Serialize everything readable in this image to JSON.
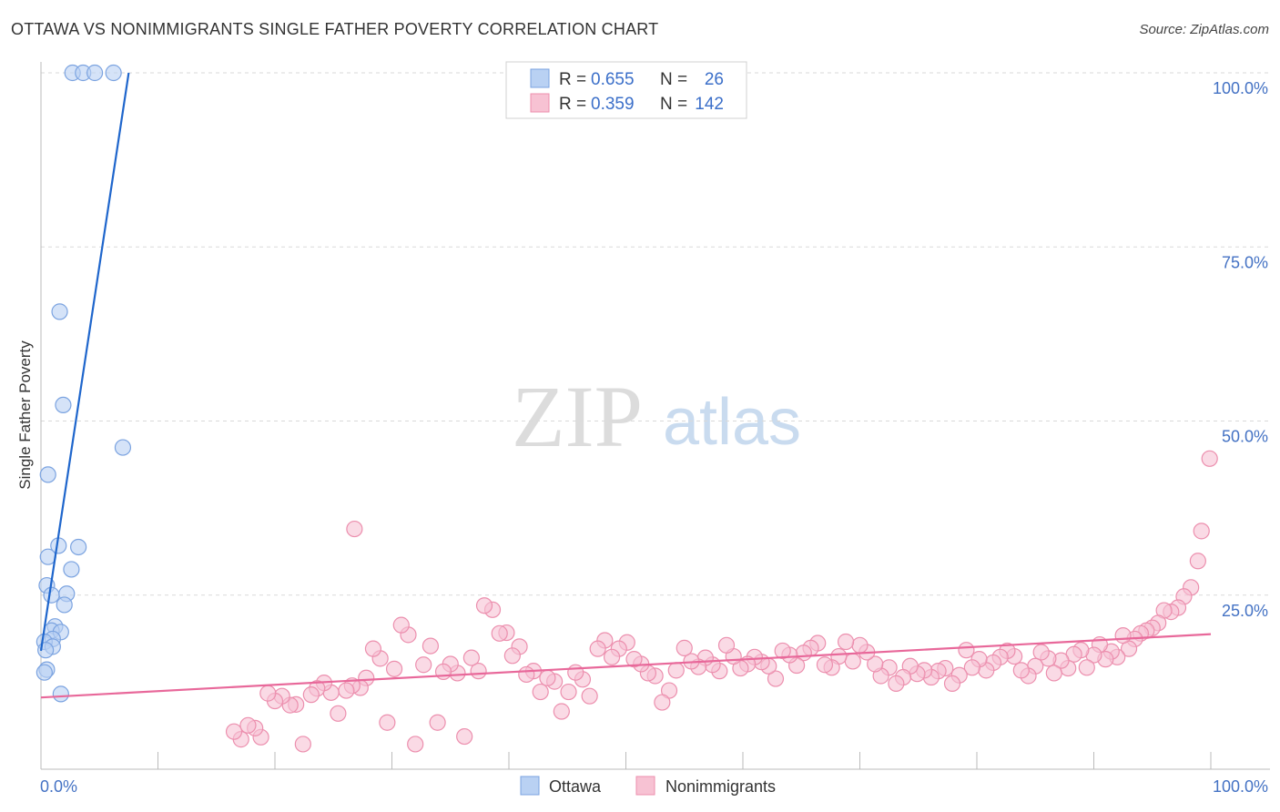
{
  "title": "OTTAWA VS NONIMMIGRANTS SINGLE FATHER POVERTY CORRELATION CHART",
  "source": "Source: ZipAtlas.com",
  "watermark": {
    "zip": "ZIP",
    "atlas": "atlas"
  },
  "colors": {
    "ottawa_fill": "#b9d1f3",
    "ottawa_stroke": "#7ba3e0",
    "ottawa_line": "#1f66cc",
    "nonimm_fill": "#f7c2d3",
    "nonimm_stroke": "#ec8fae",
    "nonimm_line": "#e8689a",
    "value_text": "#3b6fc9",
    "grid": "#d9d9d9"
  },
  "stats": [
    {
      "r_label": "R =",
      "r_value": "0.655",
      "n_label": "N =",
      "n_value": "26"
    },
    {
      "r_label": "R =",
      "r_value": "0.359",
      "n_label": "N =",
      "n_value": "142"
    }
  ],
  "chart_data": {
    "type": "scatter",
    "title": "OTTAWA VS NONIMMIGRANTS SINGLE FATHER POVERTY CORRELATION CHART",
    "xlabel": "",
    "ylabel": "Single Father Poverty",
    "xlim": [
      0,
      100
    ],
    "ylim": [
      0,
      100
    ],
    "x_tick_labels": [
      "0.0%",
      "100.0%"
    ],
    "y_ticks": [
      25,
      50,
      75,
      100
    ],
    "y_tick_labels": [
      "25.0%",
      "50.0%",
      "75.0%",
      "100.0%"
    ],
    "legend_position": "bottom-center",
    "series": [
      {
        "name": "Ottawa",
        "r": 0.655,
        "n": 26,
        "trend": {
          "x": [
            0.0,
            7.5
          ],
          "y": [
            17.0,
            100.0
          ]
        },
        "points": [
          [
            2.7,
            100.0
          ],
          [
            3.6,
            100.0
          ],
          [
            4.6,
            100.0
          ],
          [
            6.2,
            100.0
          ],
          [
            1.6,
            65.7
          ],
          [
            1.9,
            52.3
          ],
          [
            7.0,
            46.2
          ],
          [
            0.6,
            42.3
          ],
          [
            1.5,
            32.1
          ],
          [
            3.2,
            31.9
          ],
          [
            0.6,
            30.5
          ],
          [
            2.6,
            28.7
          ],
          [
            0.5,
            26.4
          ],
          [
            0.9,
            25.0
          ],
          [
            2.2,
            25.2
          ],
          [
            2.0,
            23.6
          ],
          [
            1.2,
            20.5
          ],
          [
            0.9,
            19.9
          ],
          [
            1.7,
            19.7
          ],
          [
            1.0,
            18.7
          ],
          [
            0.3,
            18.3
          ],
          [
            1.0,
            17.6
          ],
          [
            0.4,
            17.1
          ],
          [
            0.5,
            14.3
          ],
          [
            0.3,
            13.9
          ],
          [
            1.7,
            10.8
          ]
        ]
      },
      {
        "name": "Nonimmigrants",
        "r": 0.359,
        "n": 142,
        "trend": {
          "x": [
            0.0,
            100.0
          ],
          "y": [
            10.3,
            19.4
          ]
        },
        "points": [
          [
            26.8,
            34.5
          ],
          [
            99.9,
            44.6
          ],
          [
            99.2,
            34.2
          ],
          [
            98.9,
            29.9
          ],
          [
            98.3,
            26.1
          ],
          [
            97.7,
            24.8
          ],
          [
            97.2,
            23.2
          ],
          [
            96.6,
            22.6
          ],
          [
            96.0,
            22.8
          ],
          [
            95.5,
            21.0
          ],
          [
            95.0,
            20.3
          ],
          [
            94.5,
            19.9
          ],
          [
            94.0,
            19.5
          ],
          [
            93.5,
            18.7
          ],
          [
            93.0,
            17.3
          ],
          [
            92.5,
            19.2
          ],
          [
            92.0,
            16.1
          ],
          [
            91.5,
            16.9
          ],
          [
            91.0,
            15.8
          ],
          [
            90.5,
            17.9
          ],
          [
            90.0,
            16.4
          ],
          [
            89.4,
            14.6
          ],
          [
            88.9,
            17.1
          ],
          [
            88.3,
            16.5
          ],
          [
            87.8,
            14.5
          ],
          [
            87.2,
            15.6
          ],
          [
            86.6,
            13.8
          ],
          [
            86.1,
            15.9
          ],
          [
            85.5,
            16.8
          ],
          [
            85.0,
            14.8
          ],
          [
            84.4,
            13.4
          ],
          [
            83.8,
            14.2
          ],
          [
            83.2,
            16.2
          ],
          [
            82.6,
            17.0
          ],
          [
            82.0,
            16.1
          ],
          [
            81.4,
            15.3
          ],
          [
            80.8,
            14.2
          ],
          [
            80.2,
            15.8
          ],
          [
            79.6,
            14.6
          ],
          [
            79.1,
            17.1
          ],
          [
            78.5,
            13.5
          ],
          [
            77.9,
            12.3
          ],
          [
            77.3,
            14.5
          ],
          [
            76.7,
            14.1
          ],
          [
            76.1,
            13.2
          ],
          [
            75.5,
            14.2
          ],
          [
            74.9,
            13.7
          ],
          [
            74.3,
            14.8
          ],
          [
            73.7,
            13.2
          ],
          [
            73.1,
            12.3
          ],
          [
            72.5,
            14.6
          ],
          [
            71.8,
            13.4
          ],
          [
            71.3,
            15.1
          ],
          [
            70.6,
            16.8
          ],
          [
            70.0,
            17.8
          ],
          [
            69.4,
            15.5
          ],
          [
            68.8,
            18.3
          ],
          [
            68.2,
            16.2
          ],
          [
            67.6,
            14.6
          ],
          [
            67.0,
            15.0
          ],
          [
            66.4,
            18.1
          ],
          [
            65.8,
            17.4
          ],
          [
            65.2,
            16.7
          ],
          [
            64.6,
            14.9
          ],
          [
            64.0,
            16.4
          ],
          [
            63.4,
            17.0
          ],
          [
            62.8,
            13.0
          ],
          [
            62.2,
            14.8
          ],
          [
            61.6,
            15.4
          ],
          [
            61.0,
            16.1
          ],
          [
            60.4,
            15.1
          ],
          [
            59.8,
            14.5
          ],
          [
            59.2,
            16.2
          ],
          [
            58.6,
            17.8
          ],
          [
            58.0,
            14.1
          ],
          [
            57.4,
            15.0
          ],
          [
            56.8,
            16.0
          ],
          [
            56.2,
            14.7
          ],
          [
            55.6,
            15.5
          ],
          [
            55.0,
            17.4
          ],
          [
            54.3,
            14.2
          ],
          [
            53.7,
            11.3
          ],
          [
            53.1,
            9.6
          ],
          [
            52.5,
            13.4
          ],
          [
            51.9,
            13.8
          ],
          [
            51.3,
            15.1
          ],
          [
            50.7,
            15.8
          ],
          [
            50.1,
            18.2
          ],
          [
            49.4,
            17.3
          ],
          [
            48.8,
            16.1
          ],
          [
            48.2,
            18.5
          ],
          [
            47.6,
            17.3
          ],
          [
            46.9,
            10.5
          ],
          [
            46.3,
            12.9
          ],
          [
            45.7,
            13.9
          ],
          [
            45.1,
            11.1
          ],
          [
            44.5,
            8.3
          ],
          [
            43.9,
            12.6
          ],
          [
            43.3,
            13.1
          ],
          [
            42.7,
            11.1
          ],
          [
            42.1,
            14.1
          ],
          [
            41.5,
            13.6
          ],
          [
            40.9,
            17.6
          ],
          [
            40.3,
            16.3
          ],
          [
            39.8,
            19.6
          ],
          [
            39.2,
            19.5
          ],
          [
            38.6,
            22.9
          ],
          [
            37.9,
            23.5
          ],
          [
            37.4,
            14.1
          ],
          [
            36.8,
            16.0
          ],
          [
            36.2,
            4.7
          ],
          [
            35.6,
            13.8
          ],
          [
            35.0,
            15.1
          ],
          [
            34.4,
            14.0
          ],
          [
            33.9,
            6.7
          ],
          [
            33.3,
            17.7
          ],
          [
            32.7,
            15.0
          ],
          [
            32.0,
            3.6
          ],
          [
            31.4,
            19.3
          ],
          [
            30.8,
            20.7
          ],
          [
            30.2,
            14.4
          ],
          [
            29.6,
            6.7
          ],
          [
            29.0,
            15.9
          ],
          [
            28.4,
            17.3
          ],
          [
            27.8,
            13.1
          ],
          [
            27.3,
            11.7
          ],
          [
            26.6,
            12.0
          ],
          [
            26.1,
            11.3
          ],
          [
            25.4,
            8.0
          ],
          [
            24.8,
            11.0
          ],
          [
            24.2,
            12.4
          ],
          [
            23.6,
            11.6
          ],
          [
            23.1,
            10.7
          ],
          [
            22.4,
            3.6
          ],
          [
            21.8,
            9.3
          ],
          [
            21.3,
            9.2
          ],
          [
            20.6,
            10.5
          ],
          [
            20.0,
            9.8
          ],
          [
            19.4,
            10.9
          ],
          [
            18.8,
            4.6
          ],
          [
            18.3,
            5.9
          ],
          [
            17.7,
            6.3
          ],
          [
            17.1,
            4.3
          ],
          [
            16.5,
            5.4
          ]
        ]
      }
    ]
  },
  "legend": [
    "Ottawa",
    "Nonimmigrants"
  ]
}
